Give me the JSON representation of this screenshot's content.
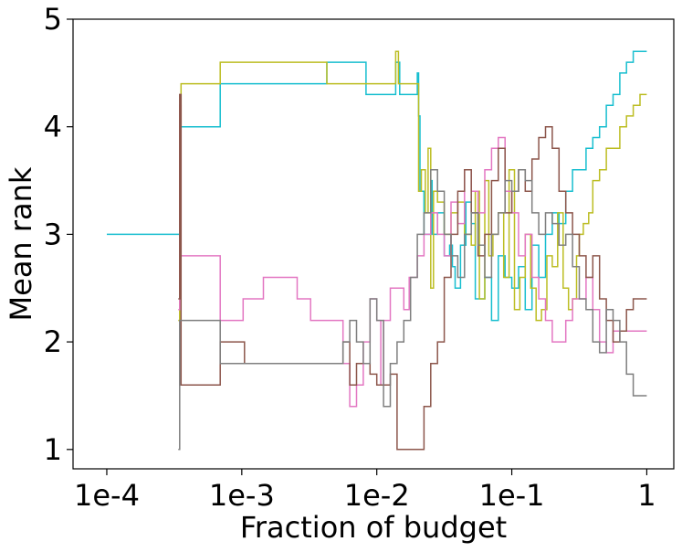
{
  "chart_data": {
    "type": "line",
    "title": "",
    "xlabel": "Fraction of budget",
    "ylabel": "Mean rank",
    "x_scale": "log10",
    "xlim_log10": [
      -4.25,
      0.2
    ],
    "ylim": [
      0.82,
      5.0
    ],
    "x_ticks": [
      {
        "log10": -4,
        "label": "1e-4"
      },
      {
        "log10": -3,
        "label": "1e-3"
      },
      {
        "log10": -2,
        "label": "1e-2"
      },
      {
        "log10": -1,
        "label": "1e-1"
      },
      {
        "log10": 0,
        "label": "1"
      }
    ],
    "y_ticks": [
      {
        "value": 1,
        "label": "1"
      },
      {
        "value": 2,
        "label": "2"
      },
      {
        "value": 3,
        "label": "3"
      },
      {
        "value": 4,
        "label": "4"
      },
      {
        "value": 5,
        "label": "5"
      }
    ],
    "series": [
      {
        "name": "cyan",
        "color": "#17becf",
        "x_log10": [
          -4.0,
          -3.47,
          -3.46,
          -3.46,
          -3.45,
          -3.17,
          -3.16,
          -2.38,
          -2.37,
          -2.1,
          -2.08,
          -1.87,
          -1.86,
          -1.84,
          -1.83,
          -1.7,
          -1.69,
          -1.68,
          -1.67,
          -1.65,
          -1.6,
          -1.59,
          -1.55,
          -1.5,
          -1.46,
          -1.44,
          -1.42,
          -1.38,
          -1.34,
          -1.3,
          -1.27,
          -1.2,
          -1.15,
          -1.1,
          -1.05,
          -1.0,
          -0.95,
          -0.9,
          -0.85,
          -0.8,
          -0.75,
          -0.7,
          -0.65,
          -0.6,
          -0.55,
          -0.5,
          -0.45,
          -0.4,
          -0.35,
          -0.3,
          -0.25,
          -0.2,
          -0.15,
          -0.1,
          -0.05,
          0.0
        ],
        "y": [
          3.0,
          3.0,
          2.4,
          4.0,
          4.0,
          4.0,
          4.4,
          4.4,
          4.6,
          4.6,
          4.3,
          4.3,
          4.6,
          4.6,
          4.3,
          4.5,
          4.1,
          3.4,
          3.4,
          3.0,
          3.5,
          3.0,
          3.2,
          2.8,
          2.9,
          2.7,
          2.5,
          2.9,
          3.3,
          3.1,
          2.4,
          2.6,
          2.2,
          2.8,
          2.6,
          2.5,
          2.7,
          2.3,
          2.9,
          2.6,
          3.0,
          3.2,
          3.1,
          3.4,
          3.6,
          3.6,
          3.8,
          3.9,
          4.0,
          4.2,
          4.3,
          4.5,
          4.6,
          4.7,
          4.7,
          4.7
        ]
      },
      {
        "name": "olive",
        "color": "#bcbd22",
        "x_log10": [
          -3.47,
          -3.46,
          -3.45,
          -3.17,
          -3.16,
          -2.38,
          -2.37,
          -1.87,
          -1.86,
          -1.85,
          -1.84,
          -1.83,
          -1.7,
          -1.69,
          -1.67,
          -1.64,
          -1.62,
          -1.6,
          -1.58,
          -1.55,
          -1.5,
          -1.45,
          -1.4,
          -1.35,
          -1.3,
          -1.27,
          -1.24,
          -1.2,
          -1.17,
          -1.14,
          -1.1,
          -1.06,
          -1.02,
          -0.98,
          -0.94,
          -0.9,
          -0.86,
          -0.82,
          -0.78,
          -0.74,
          -0.7,
          -0.66,
          -0.62,
          -0.58,
          -0.55,
          -0.52,
          -0.5,
          -0.47,
          -0.43,
          -0.4,
          -0.35,
          -0.3,
          -0.25,
          -0.2,
          -0.15,
          -0.1,
          -0.05,
          0.0
        ],
        "y": [
          2.2,
          4.0,
          4.4,
          4.4,
          4.6,
          4.6,
          4.4,
          4.4,
          4.7,
          4.7,
          4.4,
          4.4,
          4.4,
          3.4,
          3.6,
          3.2,
          3.8,
          2.5,
          3.4,
          3.3,
          3.0,
          3.2,
          3.3,
          3.0,
          2.9,
          3.4,
          2.4,
          3.5,
          2.8,
          3.0,
          3.2,
          2.6,
          3.6,
          2.3,
          2.6,
          3.0,
          2.5,
          2.2,
          2.3,
          2.8,
          2.7,
          3.2,
          2.5,
          2.3,
          2.4,
          2.8,
          3.0,
          3.1,
          3.2,
          3.5,
          3.6,
          3.8,
          3.8,
          4.0,
          4.1,
          4.2,
          4.3,
          4.3
        ]
      },
      {
        "name": "pink",
        "color": "#e377c2",
        "x_log10": [
          -3.47,
          -3.46,
          -3.45,
          -3.17,
          -3.16,
          -3.0,
          -2.99,
          -2.85,
          -2.84,
          -2.6,
          -2.59,
          -2.5,
          -2.49,
          -2.3,
          -2.25,
          -2.2,
          -2.15,
          -2.1,
          -2.05,
          -2.0,
          -1.97,
          -1.95,
          -1.9,
          -1.85,
          -1.8,
          -1.76,
          -1.7,
          -1.65,
          -1.6,
          -1.55,
          -1.5,
          -1.45,
          -1.4,
          -1.35,
          -1.3,
          -1.25,
          -1.2,
          -1.15,
          -1.1,
          -1.05,
          -1.0,
          -0.95,
          -0.9,
          -0.85,
          -0.8,
          -0.75,
          -0.7,
          -0.65,
          -0.6,
          -0.55,
          -0.5,
          -0.45,
          -0.4,
          -0.35,
          -0.3,
          -0.25,
          -0.2,
          -0.15,
          -0.1,
          -0.05,
          0.0
        ],
        "y": [
          2.3,
          4.2,
          2.8,
          2.8,
          2.2,
          2.2,
          2.4,
          2.4,
          2.6,
          2.6,
          2.4,
          2.4,
          2.2,
          2.2,
          1.8,
          1.4,
          1.6,
          2.0,
          2.4,
          2.2,
          1.6,
          2.2,
          2.5,
          2.5,
          2.3,
          2.6,
          2.8,
          3.0,
          3.2,
          3.0,
          2.8,
          3.3,
          3.1,
          3.6,
          3.4,
          3.2,
          3.6,
          3.8,
          3.9,
          3.4,
          3.2,
          2.8,
          3.0,
          2.6,
          2.4,
          2.2,
          2.0,
          2.0,
          2.2,
          2.4,
          2.4,
          2.6,
          2.3,
          2.0,
          1.9,
          2.1,
          2.1,
          2.1,
          2.1,
          2.1,
          2.1
        ]
      },
      {
        "name": "brown",
        "color": "#8c564b",
        "x_log10": [
          -3.47,
          -3.46,
          -3.45,
          -3.17,
          -3.16,
          -2.99,
          -2.98,
          -2.3,
          -2.25,
          -2.2,
          -2.15,
          -2.1,
          -2.05,
          -2.0,
          -1.95,
          -1.9,
          -1.85,
          -1.8,
          -1.8,
          -1.7,
          -1.65,
          -1.6,
          -1.55,
          -1.5,
          -1.45,
          -1.4,
          -1.35,
          -1.3,
          -1.25,
          -1.2,
          -1.15,
          -1.1,
          -1.05,
          -1.0,
          -0.95,
          -0.9,
          -0.85,
          -0.8,
          -0.75,
          -0.7,
          -0.65,
          -0.6,
          -0.55,
          -0.5,
          -0.45,
          -0.4,
          -0.35,
          -0.3,
          -0.25,
          -0.2,
          -0.15,
          -0.1,
          -0.05,
          0.0
        ],
        "y": [
          2.4,
          4.3,
          1.6,
          1.6,
          2.0,
          2.0,
          1.8,
          1.8,
          2.0,
          1.6,
          1.8,
          1.8,
          1.7,
          1.6,
          1.6,
          1.7,
          1.0,
          1.0,
          1.0,
          1.0,
          1.4,
          1.8,
          2.0,
          2.6,
          3.0,
          3.4,
          3.6,
          3.2,
          2.8,
          3.0,
          3.5,
          3.8,
          3.2,
          3.4,
          3.6,
          3.4,
          3.7,
          3.9,
          4.0,
          3.8,
          3.4,
          3.2,
          3.0,
          2.8,
          2.6,
          2.8,
          2.4,
          2.2,
          2.0,
          2.1,
          2.3,
          2.4,
          2.4,
          2.4
        ]
      },
      {
        "name": "gray",
        "color": "#7f7f7f",
        "x_log10": [
          -3.47,
          -3.46,
          -3.45,
          -3.17,
          -3.16,
          -2.99,
          -2.98,
          -2.3,
          -2.25,
          -2.2,
          -2.15,
          -2.1,
          -2.05,
          -2.0,
          -1.95,
          -1.9,
          -1.85,
          -1.8,
          -1.75,
          -1.7,
          -1.65,
          -1.6,
          -1.55,
          -1.5,
          -1.45,
          -1.4,
          -1.35,
          -1.3,
          -1.25,
          -1.2,
          -1.15,
          -1.1,
          -1.05,
          -1.0,
          -0.95,
          -0.9,
          -0.85,
          -0.8,
          -0.75,
          -0.7,
          -0.65,
          -0.6,
          -0.55,
          -0.5,
          -0.45,
          -0.4,
          -0.35,
          -0.3,
          -0.25,
          -0.2,
          -0.15,
          -0.1,
          -0.05,
          0.0
        ],
        "y": [
          1.0,
          2.2,
          2.2,
          2.2,
          1.8,
          1.8,
          1.8,
          1.8,
          2.0,
          2.2,
          2.0,
          1.8,
          2.4,
          2.2,
          1.4,
          1.8,
          2.0,
          2.2,
          2.6,
          3.0,
          3.2,
          3.6,
          3.4,
          3.0,
          2.8,
          2.6,
          3.0,
          3.2,
          2.9,
          2.6,
          3.0,
          3.2,
          3.5,
          3.4,
          3.6,
          3.5,
          3.2,
          3.0,
          3.2,
          3.1,
          2.9,
          3.0,
          2.7,
          2.4,
          2.3,
          2.0,
          1.9,
          2.3,
          2.2,
          2.0,
          1.7,
          1.5,
          1.5,
          1.5
        ]
      }
    ]
  }
}
